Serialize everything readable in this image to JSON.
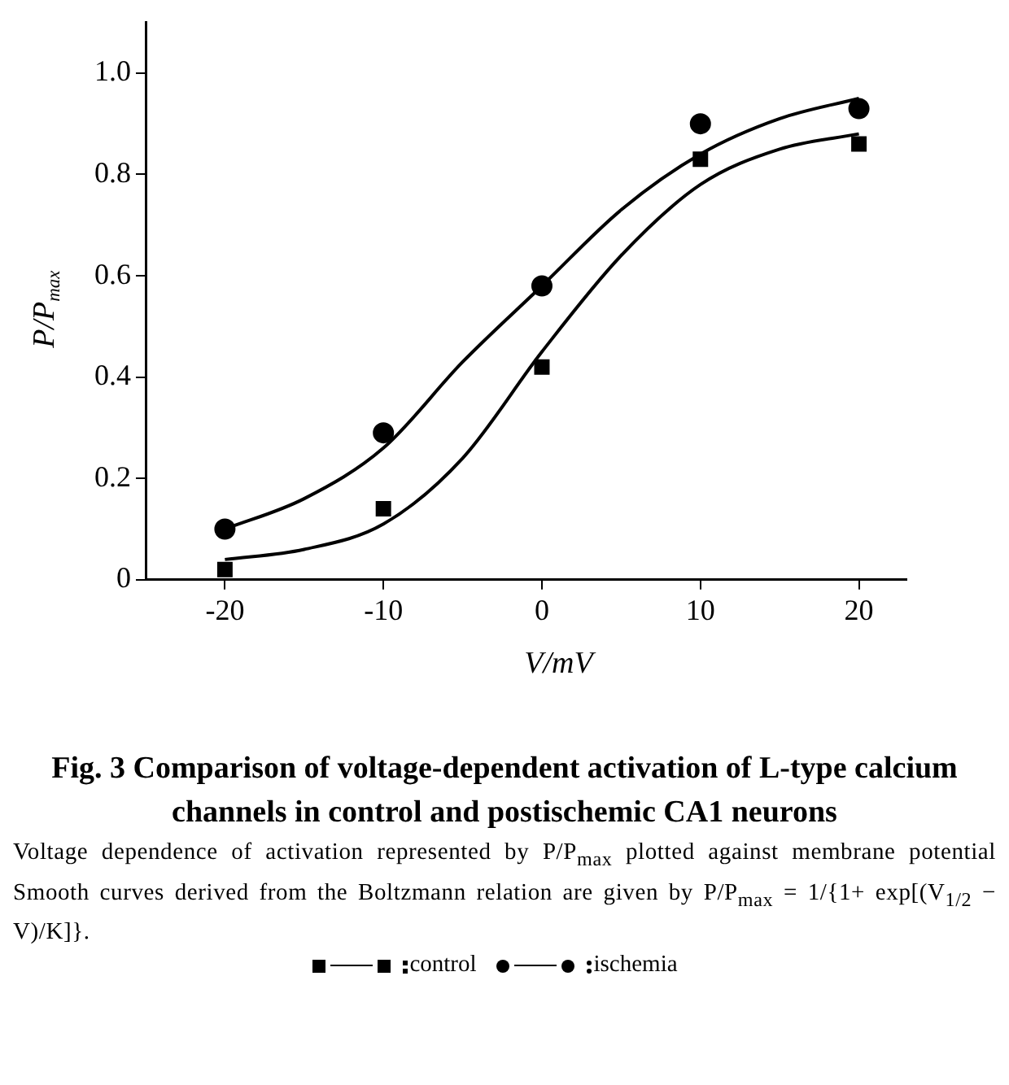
{
  "chart_data": {
    "type": "scatter",
    "title": "Fig. 3  Comparison of voltage-dependent activation of L-type calcium channels in control and postischemic CA1 neurons",
    "xlabel": "V/mV",
    "ylabel": "P/P$_{max}$",
    "annotations": [
      "Voltage dependence of activation represented by P/P$_{max}$ plotted against membrane potential Smooth curves derived from the Boltzmann relation are given by P/P$_{max}$ = 1/{1+ exp[(V$_{1/2}$ − V)/K]}."
    ],
    "x": [
      -20,
      -10,
      0,
      10,
      20
    ],
    "xlim": [
      -25,
      23
    ],
    "xticks": [
      -20,
      -10,
      0,
      10,
      20
    ],
    "ylim": [
      0,
      1.1
    ],
    "yticks": [
      0,
      {
        "value": 0.2,
        "label": "0.2"
      },
      {
        "value": 0.4,
        "label": "0.4"
      },
      {
        "value": 0.6,
        "label": "0.6"
      },
      {
        "value": 0.8,
        "label": "0.8"
      },
      {
        "value": 1,
        "label": "1.0"
      }
    ],
    "legend": "bottom",
    "series": [
      {
        "name": "control",
        "type": "scatter",
        "marker": "square",
        "color": "#000000",
        "values": [
          0.02,
          0.14,
          0.42,
          0.83,
          0.86
        ]
      },
      {
        "name": "ischemia",
        "type": "scatter",
        "marker": "circle",
        "color": "#000000",
        "values": [
          0.1,
          0.29,
          0.58,
          0.9,
          0.93
        ]
      },
      {
        "type": "line",
        "color": "#000000",
        "x": [
          -20,
          -15,
          -10,
          -5,
          0,
          5,
          10,
          15,
          20
        ],
        "values": [
          0.04,
          0.06,
          0.11,
          0.24,
          0.45,
          0.64,
          0.78,
          0.85,
          0.88
        ]
      },
      {
        "type": "line",
        "color": "#000000",
        "x": [
          -20,
          -15,
          -10,
          -5,
          0,
          5,
          10,
          15,
          20
        ],
        "values": [
          0.1,
          0.16,
          0.26,
          0.43,
          0.58,
          0.73,
          0.84,
          0.91,
          0.95
        ]
      }
    ]
  }
}
